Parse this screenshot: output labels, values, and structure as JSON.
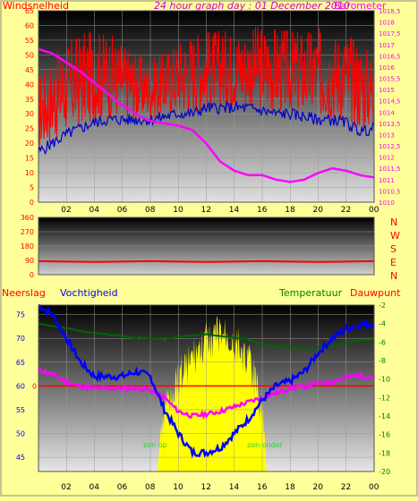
{
  "title": "24 hour graph day : 01 December 2010",
  "colors": {
    "background": "#ffff99",
    "wind": "#ff0000",
    "gust": "#ff0000",
    "wind_avg": "#0000cc",
    "barometer": "#ff00ff",
    "direction": "#ff0000",
    "humidity": "#0000ff",
    "temperature": "#006600",
    "dewpoint": "#ff00ff",
    "solar": "#ffff00",
    "zero_line": "#ff0000",
    "label_red": "#ff0000",
    "label_magenta": "#ff00ff",
    "label_green": "#008000",
    "label_blue": "#0000ff",
    "label_purple": "#cc00cc"
  },
  "chart_data": [
    {
      "type": "line",
      "ylabel": "Windsnelheid",
      "y2label": "Barometer",
      "ylim": [
        0,
        65
      ],
      "y2lim": [
        1010,
        1018.5
      ],
      "yticks": [
        0,
        5,
        10,
        15,
        20,
        25,
        30,
        35,
        40,
        45,
        50,
        55,
        60,
        65
      ],
      "y2ticks": [
        "1010",
        "1010,5",
        "1011",
        "1011,5",
        "1012",
        "1012,5",
        "1013",
        "1013,5",
        "1014",
        "1014,5",
        "1015",
        "1015,5",
        "1016",
        "1016,5",
        "1017",
        "1017,5",
        "1018",
        "1018,5"
      ],
      "xticks": [
        "02",
        "04",
        "06",
        "08",
        "10",
        "12",
        "14",
        "16",
        "18",
        "20",
        "22",
        "00"
      ],
      "series": [
        {
          "role": "gust",
          "x": [
            0,
            1,
            2,
            3,
            4,
            5,
            6,
            7,
            8,
            9,
            10,
            11,
            12,
            13,
            14,
            15,
            16,
            17,
            18,
            19,
            20,
            21,
            22,
            23,
            24
          ],
          "values": [
            35,
            40,
            44,
            47,
            48,
            48,
            46,
            43,
            42,
            44,
            47,
            49,
            50,
            50,
            50,
            50,
            51,
            50,
            49,
            49,
            49,
            48,
            48,
            45,
            42
          ]
        },
        {
          "role": "wind_avg",
          "x": [
            0,
            1,
            2,
            3,
            4,
            5,
            6,
            7,
            8,
            9,
            10,
            11,
            12,
            13,
            14,
            15,
            16,
            17,
            18,
            19,
            20,
            21,
            22,
            23,
            24
          ],
          "values": [
            17,
            20,
            23,
            25,
            27,
            28,
            28,
            28,
            28,
            29,
            30,
            30,
            32,
            32,
            32,
            32,
            31,
            30,
            30,
            29,
            28,
            28,
            27,
            24,
            25
          ]
        },
        {
          "role": "barometer",
          "x": [
            0,
            1,
            2,
            3,
            4,
            5,
            6,
            7,
            8,
            9,
            10,
            11,
            12,
            13,
            14,
            15,
            16,
            17,
            18,
            19,
            20,
            21,
            22,
            23,
            24
          ],
          "values": [
            1016.8,
            1016.6,
            1016.2,
            1015.8,
            1015.3,
            1014.8,
            1014.3,
            1013.9,
            1013.6,
            1013.5,
            1013.4,
            1013.2,
            1012.6,
            1011.8,
            1011.4,
            1011.2,
            1011.2,
            1011.0,
            1010.9,
            1011.0,
            1011.3,
            1011.5,
            1011.4,
            1011.2,
            1011.1
          ]
        }
      ]
    },
    {
      "type": "line",
      "ylim": [
        0,
        360
      ],
      "yticks": [
        0,
        90,
        180,
        270,
        360
      ],
      "compass": [
        "N",
        "W",
        "S",
        "E",
        "N"
      ],
      "series": [
        {
          "role": "direction",
          "x": [
            0,
            2,
            4,
            6,
            8,
            10,
            12,
            14,
            16,
            18,
            20,
            22,
            24
          ],
          "values": [
            85,
            82,
            80,
            82,
            85,
            82,
            80,
            82,
            85,
            82,
            80,
            82,
            85
          ]
        }
      ]
    },
    {
      "type": "line",
      "legend": [
        "Neerslag",
        "Vochtigheid",
        "Temperatuur",
        "Dauwpunt"
      ],
      "ylim": [
        42,
        77
      ],
      "yticks": [
        45,
        50,
        55,
        60,
        65,
        70,
        75
      ],
      "y2lim": [
        -20,
        -2
      ],
      "y2ticks": [
        -2,
        -4,
        -6,
        -8,
        -10,
        -12,
        -14,
        -16,
        -18,
        -20
      ],
      "xticks": [
        "02",
        "04",
        "06",
        "08",
        "10",
        "12",
        "14",
        "16",
        "18",
        "20",
        "22",
        "00"
      ],
      "zero_label": "0",
      "annotations": [
        "zon op",
        "zon onder"
      ],
      "series": [
        {
          "role": "humidity",
          "x": [
            0,
            1,
            2,
            3,
            4,
            5,
            6,
            7,
            8,
            9,
            10,
            11,
            12,
            13,
            14,
            15,
            16,
            17,
            18,
            19,
            20,
            21,
            22,
            23,
            24
          ],
          "values": [
            77,
            75,
            70,
            65,
            62,
            62,
            62,
            63,
            62,
            55,
            50,
            46,
            46,
            47,
            50,
            53,
            57,
            60,
            61,
            63,
            67,
            70,
            72,
            73,
            73
          ]
        },
        {
          "role": "temperature",
          "x": [
            0,
            1,
            2,
            3,
            4,
            5,
            6,
            7,
            8,
            9,
            10,
            11,
            12,
            13,
            14,
            15,
            16,
            17,
            18,
            19,
            20,
            21,
            22,
            23,
            24
          ],
          "values": [
            -4.0,
            -4.3,
            -4.5,
            -4.8,
            -5.0,
            -5.2,
            -5.4,
            -5.5,
            -5.6,
            -5.7,
            -5.4,
            -5.3,
            -5.2,
            -5.3,
            -5.5,
            -5.7,
            -6.3,
            -6.5,
            -6.6,
            -6.7,
            -6.6,
            -6.4,
            -6.0,
            -5.8,
            -5.7
          ]
        },
        {
          "role": "dewpoint",
          "x": [
            0,
            1,
            2,
            3,
            4,
            5,
            6,
            7,
            8,
            9,
            10,
            11,
            12,
            13,
            14,
            15,
            16,
            17,
            18,
            19,
            20,
            21,
            22,
            23,
            24
          ],
          "values": [
            -9.0,
            -9.5,
            -10.3,
            -10.8,
            -11.0,
            -11.0,
            -11.0,
            -11.0,
            -11.2,
            -12.0,
            -13.5,
            -14.0,
            -13.8,
            -13.5,
            -13.0,
            -12.5,
            -12.0,
            -11.5,
            -11.0,
            -10.8,
            -10.5,
            -10.3,
            -9.8,
            -9.6,
            -9.8
          ]
        },
        {
          "role": "solar",
          "x": [
            8.5,
            9,
            10,
            11,
            12,
            13,
            14,
            15,
            16,
            16.3
          ],
          "values": [
            0.0,
            0.5,
            0.7,
            0.8,
            0.9,
            0.95,
            0.9,
            0.8,
            0.5,
            0.0
          ]
        }
      ]
    }
  ]
}
